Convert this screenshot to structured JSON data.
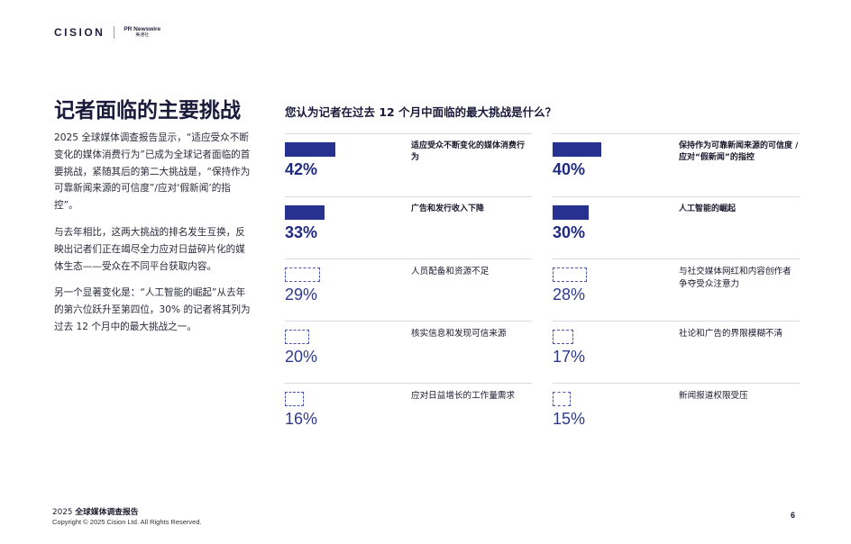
{
  "header": {
    "brand": "CISION",
    "partner_en": "PR Newswire",
    "partner_cn": "美通社"
  },
  "title": "记者面临的主要挑战",
  "paragraphs": [
    "2025 全球媒体调查报告显示，“适应受众不断变化的媒体消费行为”已成为全球记者面临的首要挑战，紧随其后的第二大挑战是，“保持作为可靠新闻来源的可信度”/应对‘假新闻’的指控”。",
    "与去年相比，这两大挑战的排名发生互换，反映出记者们正在竭尽全力应对日益碎片化的媒体生态——受众在不同平台获取内容。",
    "另一个显著变化是：“人工智能的崛起”从去年的第六位跃升至第四位，30% 的记者将其列为过去 12 个月中的最大挑战之一。"
  ],
  "question": "您认为记者在过去 12 个月中面临的最大挑战是什么？",
  "chart_data": {
    "type": "bar",
    "title": "您认为记者在过去 12 个月中面临的最大挑战是什么？",
    "categories": [
      "适应受众不断变化的媒体消费行为",
      "保持作为可靠新闻来源的可信度 / 应对“假新闻”的指控",
      "广告和发行收入下降",
      "人工智能的崛起",
      "人员配备和资源不足",
      "与社交媒体网红和内容创作者争夺受众注意力",
      "核实信息和发现可信来源",
      "社论和广告的界限模糊不清",
      "应对日益增长的工作量需求",
      "新闻报道权限受压"
    ],
    "values": [
      42,
      40,
      33,
      30,
      29,
      28,
      20,
      17,
      16,
      15
    ],
    "unit": "%"
  },
  "items": [
    {
      "label": "适应受众不断变化的媒体消费行为",
      "pct": "42%",
      "value": 42,
      "highlight": true
    },
    {
      "label": "保持作为可靠新闻来源的可信度 / 应对“假新闻”的指控",
      "pct": "40%",
      "value": 40,
      "highlight": true
    },
    {
      "label": "广告和发行收入下降",
      "pct": "33%",
      "value": 33,
      "highlight": true
    },
    {
      "label": "人工智能的崛起",
      "pct": "30%",
      "value": 30,
      "highlight": true
    },
    {
      "label": "人员配备和资源不足",
      "pct": "29%",
      "value": 29,
      "highlight": false
    },
    {
      "label": "与社交媒体网红和内容创作者争夺受众注意力",
      "pct": "28%",
      "value": 28,
      "highlight": false
    },
    {
      "label": "核实信息和发现可信来源",
      "pct": "20%",
      "value": 20,
      "highlight": false
    },
    {
      "label": "社论和广告的界限模糊不清",
      "pct": "17%",
      "value": 17,
      "highlight": false
    },
    {
      "label": "应对日益增长的工作量需求",
      "pct": "16%",
      "value": 16,
      "highlight": false
    },
    {
      "label": "新闻报道权限受压",
      "pct": "15%",
      "value": 15,
      "highlight": false
    }
  ],
  "footer": {
    "year": "2025",
    "report": "全球媒体调查报告",
    "copyright": "Copyright © 2025 Cision Ltd. All Rights Reserved.",
    "page": "6"
  },
  "colors": {
    "accent": "#27318f",
    "title": "#1a1a3a"
  }
}
